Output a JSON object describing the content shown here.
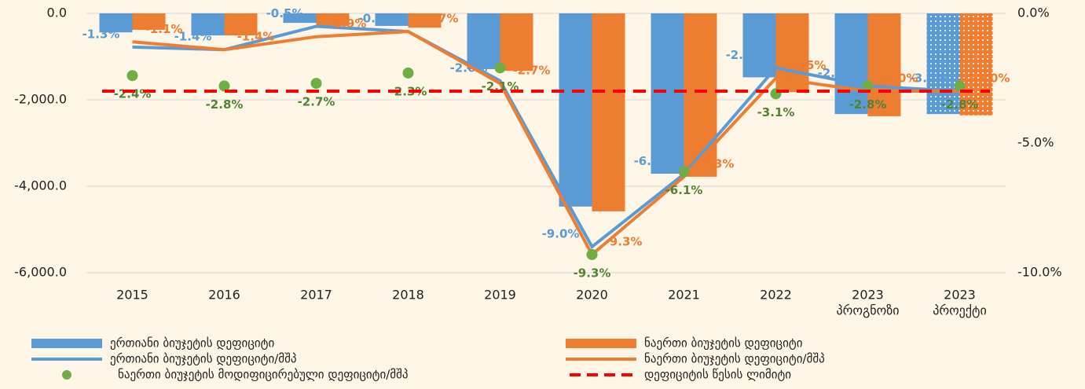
{
  "chart_data": {
    "type": "combo",
    "categories": [
      "2015",
      "2016",
      "2017",
      "2018",
      "2019",
      "2020",
      "2021",
      "2022",
      [
        "2023",
        "პროგნოზი"
      ],
      [
        "2023",
        "პროექტი"
      ]
    ],
    "ylim": [
      -6000,
      0
    ],
    "yticks": [
      {
        "value": 0,
        "label": "0.0"
      },
      {
        "value": -2000,
        "label": "-2,000.0"
      },
      {
        "value": -4000,
        "label": "-4,000.0"
      },
      {
        "value": -6000,
        "label": "-6,000.0"
      }
    ],
    "y2lim": [
      -10,
      0
    ],
    "y2ticks": [
      {
        "value": 0,
        "label": "0.0%"
      },
      {
        "value": -5,
        "label": "-5.0%"
      },
      {
        "value": -10,
        "label": "-10.0%"
      }
    ],
    "grid": true,
    "dotted_categories": [
      9
    ],
    "series": [
      {
        "name": "ერთიანი ბიუჯეტის დეფიციტი",
        "type": "bar",
        "color": "#5b9bd5",
        "values": [
          -440,
          -510,
          -220,
          -290,
          -1290,
          -4470,
          -3710,
          -1480,
          -2330,
          -2330
        ]
      },
      {
        "name": "ნაერთი ბიუჯეტის დეფიციტი",
        "type": "bar",
        "color": "#ed7d31",
        "values": [
          -380,
          -510,
          -290,
          -330,
          -1330,
          -4580,
          -3780,
          -1820,
          -2380,
          -2360
        ]
      },
      {
        "name": "ერთიანი ბიუჯეტის დეფიციტი/მშპ",
        "type": "line",
        "axis": "y2",
        "color": "#5b9bd5",
        "values": [
          -1.3,
          -1.4,
          -0.5,
          -0.7,
          -2.6,
          -9.0,
          -6.2,
          -2.1,
          -2.8,
          -3.0
        ],
        "value_labels": [
          "-1.3%",
          "-1.4%",
          "-0.5%",
          "-0.7%",
          "-2.6%",
          "-9.0%",
          "-6.2%",
          "-2.1%",
          "-2.8%",
          "-3.0%"
        ]
      },
      {
        "name": "ნაერთი ბიუჯეტის დეფიციტი/მშპ",
        "type": "line",
        "axis": "y2",
        "color": "#ed7d31",
        "values": [
          -1.1,
          -1.4,
          -0.9,
          -0.7,
          -2.7,
          -9.3,
          -6.3,
          -2.5,
          -3.0,
          -3.0
        ],
        "value_labels": [
          "-1.1%",
          "-1.4%",
          "-0.9%",
          "-0.7%",
          "-2.7%",
          "-9.3%",
          "-6.3%",
          "-2.5%",
          "-3.0%",
          "-3.0%"
        ]
      },
      {
        "name": "ნაერთი ბიუჯეტის მოდიფიცირებული დეფიციტი/მშპ",
        "type": "scatter",
        "axis": "y2",
        "color": "#70ad47",
        "values": [
          -2.4,
          -2.8,
          -2.7,
          -2.3,
          -2.1,
          -9.3,
          -6.1,
          -3.1,
          -2.8,
          -2.8
        ],
        "value_labels": [
          "-2.4%",
          "-2.8%",
          "-2.7%",
          "-2.3%",
          "-2.1%",
          "-9.3%",
          "-6.1%",
          "-3.1%",
          "-2.8%",
          "-2.8%"
        ]
      },
      {
        "name": "დეფიციტის წესის ლიმიტი",
        "type": "dashed",
        "axis": "y2",
        "color": "#ff0000",
        "values": [
          -3.0,
          -3.0,
          -3.0,
          -3.0,
          -3.0,
          -3.0,
          -3.0,
          -3.0,
          -3.0,
          -3.0
        ]
      }
    ]
  }
}
